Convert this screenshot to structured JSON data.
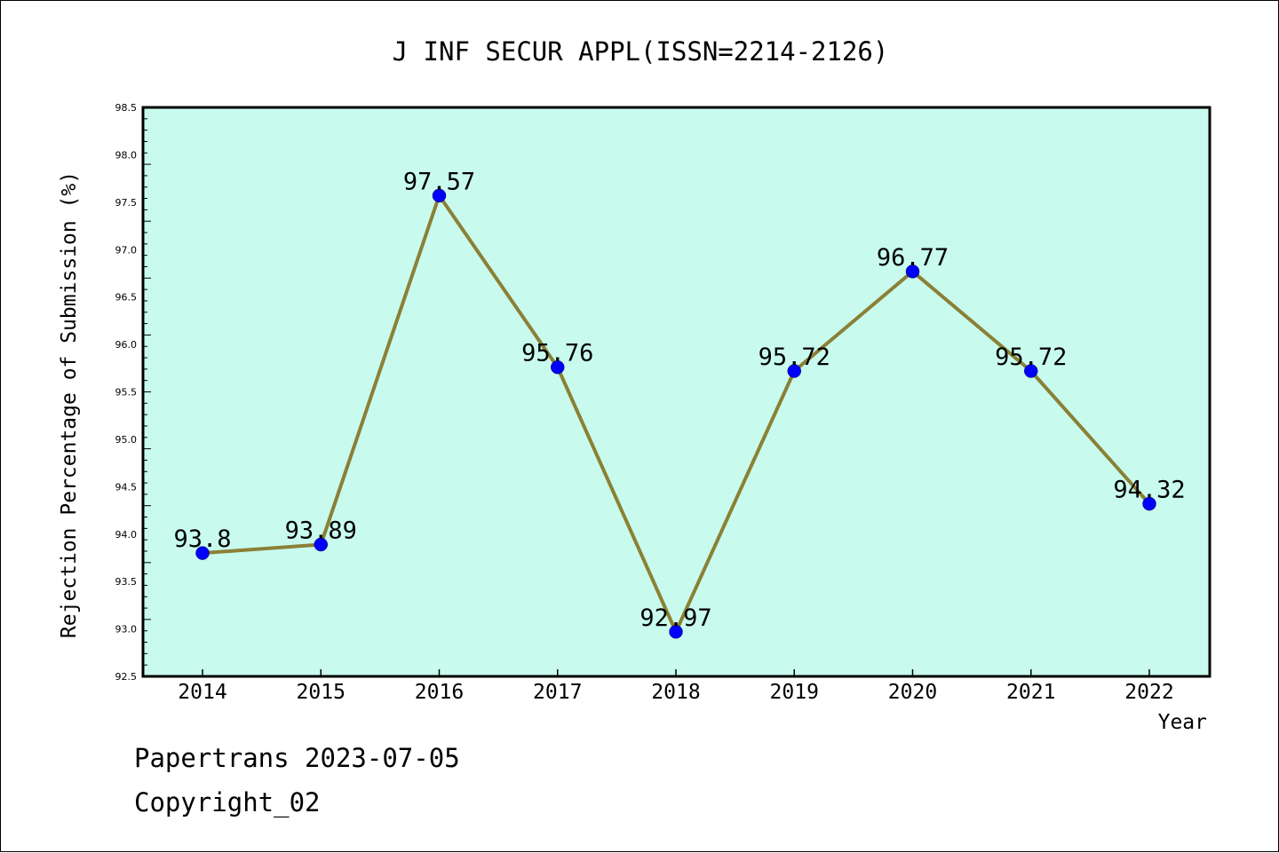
{
  "chart_data": {
    "type": "line",
    "title": "J INF SECUR APPL(ISSN=2214-2126)",
    "xlabel": "Year",
    "ylabel": "Rejection Percentage of Submission (%)",
    "categories": [
      "2014",
      "2015",
      "2016",
      "2017",
      "2018",
      "2019",
      "2020",
      "2021",
      "2022"
    ],
    "series": [
      {
        "values": [
          93.8,
          93.89,
          97.57,
          95.76,
          92.97,
          95.72,
          96.77,
          95.72,
          94.32
        ],
        "labels": [
          "93.8",
          "93.89",
          "97.57",
          "95.76",
          "92.97",
          "95.72",
          "96.77",
          "95.72",
          "94.32"
        ]
      }
    ],
    "ylim": [
      92.5,
      98.5
    ],
    "yticks": [
      "92.5",
      "93.0",
      "93.5",
      "94.0",
      "94.5",
      "95.0",
      "95.5",
      "96.0",
      "96.5",
      "97.0",
      "97.5",
      "98.0",
      "98.5"
    ],
    "grid": false,
    "colors": {
      "plot_bg": "#c8fbee",
      "line": "#8b8035",
      "marker": "#0000ff"
    }
  },
  "footer": {
    "line1": "Papertrans 2023-07-05",
    "line2": "Copyright_02"
  }
}
